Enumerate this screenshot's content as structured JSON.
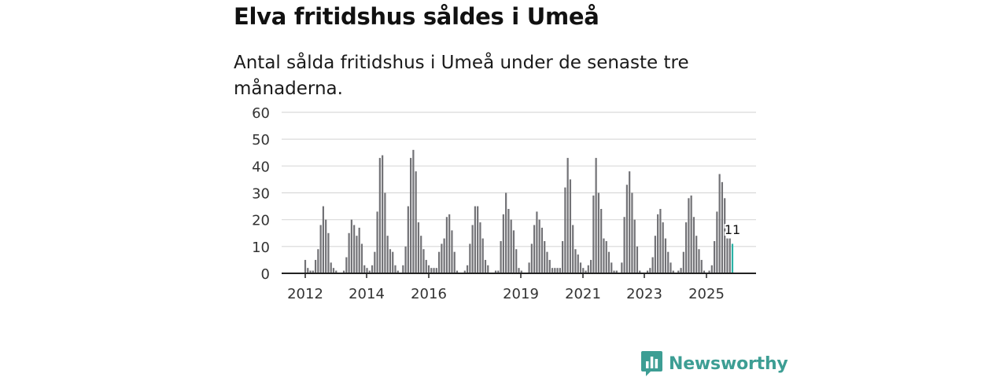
{
  "header": {
    "title": "Elva fritidshus såldes i Umeå",
    "subtitle": "Antal sålda fritidshus i Umeå under de senaste tre månaderna."
  },
  "brand": {
    "name": "Newsworthy",
    "color": "#3d9e94"
  },
  "colors": {
    "bar": "#727276",
    "highlight": "#2ab3a6",
    "grid": "#d9d9d9",
    "axis": "#222222"
  },
  "chart_data": {
    "type": "bar",
    "title": "Elva fritidshus såldes i Umeå",
    "subtitle": "Antal sålda fritidshus i Umeå under de senaste tre månaderna.",
    "xlabel": "",
    "ylabel": "",
    "ylim": [
      0,
      60
    ],
    "yticks": [
      "0",
      "10",
      "20",
      "30",
      "40",
      "50",
      "60"
    ],
    "xticks": [
      "2012",
      "2014",
      "2016",
      "2019",
      "2021",
      "2023",
      "2025"
    ],
    "grid": true,
    "highlight_label": "11",
    "values": [
      5,
      2,
      1,
      1,
      5,
      9,
      18,
      25,
      20,
      15,
      4,
      2,
      1,
      0,
      0,
      1,
      6,
      15,
      20,
      18,
      14,
      17,
      11,
      3,
      2,
      1,
      3,
      8,
      23,
      43,
      44,
      30,
      14,
      9,
      8,
      3,
      1,
      0,
      3,
      10,
      25,
      43,
      46,
      38,
      19,
      14,
      9,
      5,
      3,
      2,
      2,
      2,
      8,
      11,
      13,
      21,
      22,
      16,
      8,
      1,
      0,
      0,
      1,
      3,
      11,
      18,
      25,
      25,
      19,
      13,
      5,
      3,
      0,
      0,
      1,
      1,
      12,
      22,
      30,
      24,
      20,
      16,
      9,
      2,
      1,
      0,
      0,
      4,
      11,
      18,
      23,
      20,
      17,
      12,
      8,
      5,
      2,
      2,
      2,
      2,
      12,
      32,
      43,
      35,
      18,
      9,
      7,
      4,
      2,
      1,
      3,
      5,
      29,
      43,
      30,
      24,
      13,
      12,
      8,
      4,
      1,
      1,
      0,
      4,
      21,
      33,
      38,
      30,
      20,
      10,
      1,
      0,
      0,
      1,
      2,
      6,
      14,
      22,
      24,
      19,
      13,
      8,
      4,
      1,
      0,
      1,
      2,
      8,
      19,
      28,
      29,
      21,
      14,
      9,
      5,
      1,
      0,
      1,
      3,
      12,
      23,
      37,
      34,
      28,
      13,
      13,
      11
    ]
  }
}
